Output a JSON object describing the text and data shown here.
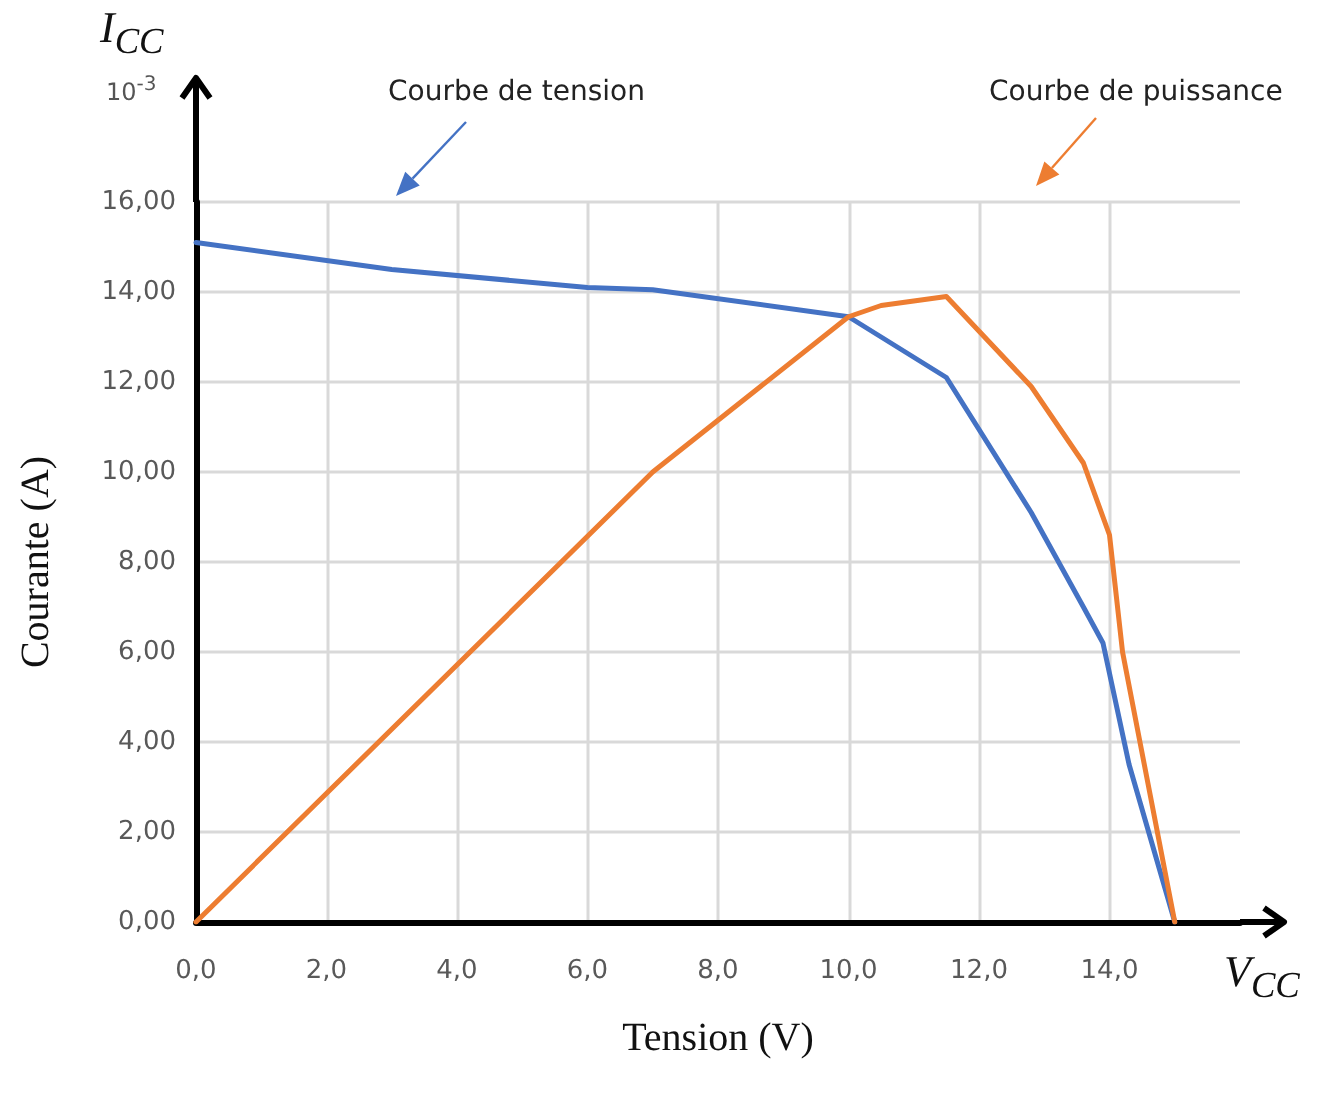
{
  "chart_data": {
    "type": "line",
    "xlabel": "Tension (V)",
    "ylabel": "Courante (A)",
    "xlim": [
      0,
      16
    ],
    "ylim": [
      0,
      16
    ],
    "xticks": [
      {
        "value": 0,
        "label": "0,0"
      },
      {
        "value": 2,
        "label": "2,0"
      },
      {
        "value": 4,
        "label": "4,0"
      },
      {
        "value": 6,
        "label": "6,0"
      },
      {
        "value": 8,
        "label": "8,0"
      },
      {
        "value": 10,
        "label": "10,0"
      },
      {
        "value": 12,
        "label": "12,0"
      },
      {
        "value": 14,
        "label": "14,0"
      }
    ],
    "yticks": [
      {
        "value": 0,
        "label": "0,00"
      },
      {
        "value": 2,
        "label": "2,00"
      },
      {
        "value": 4,
        "label": "4,00"
      },
      {
        "value": 6,
        "label": "6,00"
      },
      {
        "value": 8,
        "label": "8,00"
      },
      {
        "value": 10,
        "label": "10,00"
      },
      {
        "value": 12,
        "label": "12,00"
      },
      {
        "value": 14,
        "label": "14,00"
      },
      {
        "value": 16,
        "label": "16,00"
      }
    ],
    "grid": true,
    "legend": false,
    "marker": "none",
    "line_style": "solid",
    "series": [
      {
        "color": "#4472c4",
        "x": [
          0,
          3,
          6,
          7,
          10,
          11.5,
          12.8,
          13.6,
          13.9,
          14.3,
          15
        ],
        "values": [
          15.1,
          14.5,
          14.1,
          14.05,
          13.45,
          12.1,
          9.1,
          7.0,
          6.2,
          3.5,
          0
        ]
      },
      {
        "color": "#ed7d31",
        "x": [
          0,
          7,
          10,
          10.5,
          11.5,
          12.8,
          13.6,
          14.0,
          14.2,
          15
        ],
        "values": [
          0,
          10,
          13.45,
          13.7,
          13.9,
          11.9,
          10.2,
          8.6,
          6.0,
          0
        ]
      }
    ],
    "annotations": [
      "Courbe de tension",
      "Courbe de puissance",
      "I$_{CC}$",
      "10$^{-3}$",
      "V$_{CC}$"
    ]
  }
}
